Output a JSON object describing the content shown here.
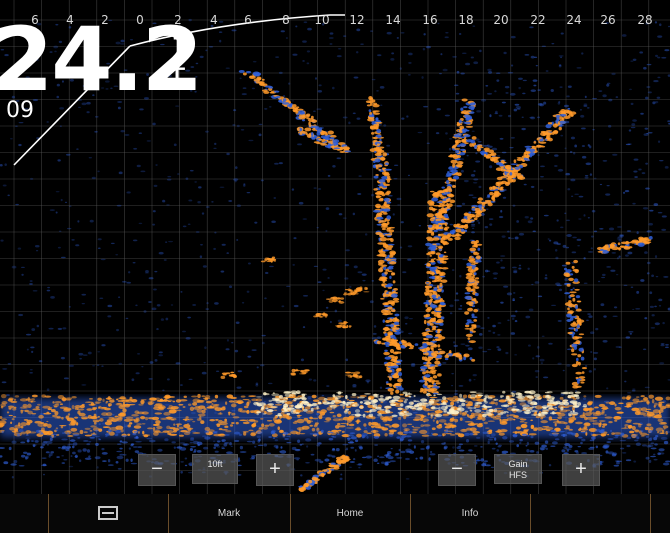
{
  "scale_labels": [
    "6",
    "4",
    "2",
    "0",
    "2",
    "4",
    "6",
    "8",
    "10",
    "12",
    "14",
    "16",
    "18",
    "20",
    "22",
    "24",
    "26",
    "28"
  ],
  "depth": {
    "value": "24.2",
    "unit": "ft",
    "temperature": "09"
  },
  "range_controls": {
    "minus_label": "−",
    "value_label": "10ft",
    "plus_label": "+"
  },
  "gain_controls": {
    "minus_label": "−",
    "value_label": "Gain",
    "value_sub": "HFS",
    "plus_label": "+"
  },
  "softkeys": [
    {
      "label": "",
      "icon": "menu-icon"
    },
    {
      "label": "Mark"
    },
    {
      "label": "Home"
    },
    {
      "label": "Info"
    },
    {
      "label": ""
    },
    {
      "label": ""
    }
  ],
  "colors": {
    "background": "#000000",
    "grid": "#5a5a5a",
    "return_strong": "#ff9a2a",
    "return_weak": "#2f5fd8",
    "return_peak": "#fff2c8"
  }
}
